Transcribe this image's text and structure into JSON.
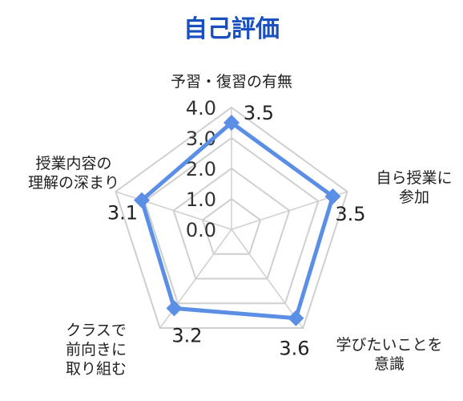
{
  "chart_data": {
    "type": "radar",
    "title": "自己評価",
    "colors": {
      "title": "#1a4fbf",
      "series": "#5b8fe6",
      "grid": "#cfcfcf",
      "grid_fill": "#ffffff"
    },
    "categories": [
      [
        "予習・復習の有無"
      ],
      [
        "自ら授業に",
        "参加"
      ],
      [
        "学びたいことを",
        "意識"
      ],
      [
        "クラスで",
        "前向きに",
        "取り組む"
      ],
      [
        "授業内容の",
        "理解の深まり"
      ]
    ],
    "r_ticks": [
      "0.0",
      "1.0",
      "2.0",
      "3.0",
      "4.0"
    ],
    "r_range": [
      0,
      4
    ],
    "series": [
      {
        "values": [
          3.5,
          3.5,
          3.6,
          3.2,
          3.1
        ],
        "value_labels": [
          "3.5",
          "3.5",
          "3.6",
          "3.2",
          "3.1"
        ]
      }
    ],
    "grid": true,
    "legend": "none"
  }
}
